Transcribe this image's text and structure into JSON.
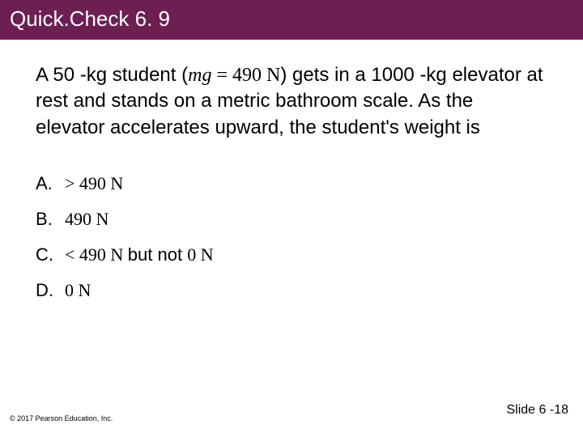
{
  "title_bar": {
    "text": "Quick.Check 6. 9",
    "background_color": "#6d1f52",
    "text_color": "#ffffff",
    "font_size": 26
  },
  "question": {
    "prefix": "A 50 -kg student (",
    "mg_italic": "mg ",
    "eq_part": "= 490 N",
    "suffix": ") gets in a 1000 -kg elevator at rest and stands on a metric bathroom scale. As the elevator accelerates upward, the student's weight is",
    "font_size": 24,
    "color": "#000000"
  },
  "options": [
    {
      "letter": "A.",
      "text_tnr": "> 490 N",
      "text_plain": ""
    },
    {
      "letter": "B.",
      "text_tnr": "490 N",
      "text_plain": ""
    },
    {
      "letter": "C.",
      "text_tnr": "< 490 N ",
      "text_plain": "but not ",
      "text_tnr2": "0 N"
    },
    {
      "letter": "D.",
      "text_tnr": "0 N",
      "text_plain": ""
    }
  ],
  "copyright": "© 2017 Pearson Education, Inc.",
  "slide_number": "Slide 6 -18",
  "colors": {
    "background": "#ffffff",
    "text": "#000000"
  }
}
